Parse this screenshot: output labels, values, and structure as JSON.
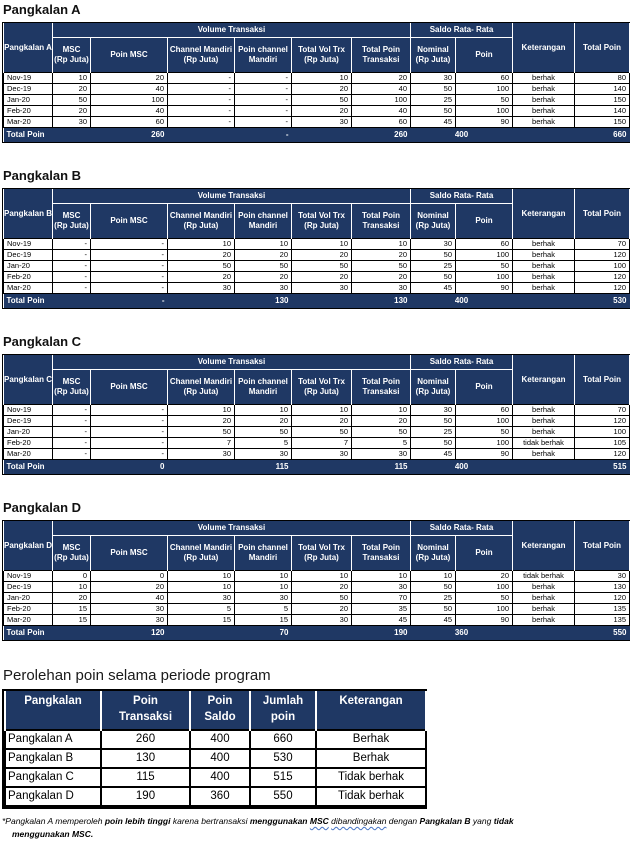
{
  "colors": {
    "header_navy": "#1F3864",
    "grid_black": "#000000",
    "squiggle_blue": "#4472C4",
    "header_text": "#FFFFFF"
  },
  "group_headers": {
    "volume": "Volume Transaksi",
    "saldo": "Saldo Rata- Rata"
  },
  "columns": {
    "msc": "MSC\n(Rp Juta)",
    "poin_msc": "Poin MSC",
    "channel": "Channel Mandiri\n(Rp Juta)",
    "poin_channel": "Poin channel\nMandiri",
    "total_vol": "Total Vol Trx\n(Rp Juta)",
    "total_poin_trx": "Total Poin\nTransaksi",
    "nominal": "Nominal\n(Rp Juta)",
    "poin": "Poin",
    "keterangan": "Keterangan",
    "total_poin": "Total Poin"
  },
  "total_label": "Total Poin",
  "tables": [
    {
      "title": "Pangkalan A",
      "name": "Pangkalan A",
      "rows": [
        [
          "Nov-19",
          "10",
          "20",
          "-",
          "-",
          "10",
          "20",
          "30",
          "60",
          "berhak",
          "80"
        ],
        [
          "Dec-19",
          "20",
          "40",
          "-",
          "-",
          "20",
          "40",
          "50",
          "100",
          "berhak",
          "140"
        ],
        [
          "Jan-20",
          "50",
          "100",
          "-",
          "-",
          "50",
          "100",
          "25",
          "50",
          "berhak",
          "150"
        ],
        [
          "Feb-20",
          "20",
          "40",
          "-",
          "-",
          "20",
          "40",
          "50",
          "100",
          "berhak",
          "140"
        ],
        [
          "Mar-20",
          "30",
          "60",
          "-",
          "-",
          "30",
          "60",
          "45",
          "90",
          "berhak",
          "150"
        ]
      ],
      "totals": {
        "poin_msc": "260",
        "poin_channel": "-",
        "poin_trx": "260",
        "saldo": "400",
        "total": "660"
      }
    },
    {
      "title": "Pangkalan B",
      "name": "Pangkalan B",
      "rows": [
        [
          "Nov-19",
          "-",
          "-",
          "10",
          "10",
          "10",
          "10",
          "30",
          "60",
          "berhak",
          "70"
        ],
        [
          "Dec-19",
          "-",
          "-",
          "20",
          "20",
          "20",
          "20",
          "50",
          "100",
          "berhak",
          "120"
        ],
        [
          "Jan-20",
          "-",
          "-",
          "50",
          "50",
          "50",
          "50",
          "25",
          "50",
          "berhak",
          "100"
        ],
        [
          "Feb-20",
          "-",
          "-",
          "20",
          "20",
          "20",
          "20",
          "50",
          "100",
          "berhak",
          "120"
        ],
        [
          "Mar-20",
          "-",
          "-",
          "30",
          "30",
          "30",
          "30",
          "45",
          "90",
          "berhak",
          "120"
        ]
      ],
      "totals": {
        "poin_msc": "-",
        "poin_channel": "130",
        "poin_trx": "130",
        "saldo": "400",
        "total": "530"
      }
    },
    {
      "title": "Pangkalan C",
      "name": "Pangkalan C",
      "rows": [
        [
          "Nov-19",
          "-",
          "-",
          "10",
          "10",
          "10",
          "10",
          "30",
          "60",
          "berhak",
          "70"
        ],
        [
          "Dec-19",
          "-",
          "-",
          "20",
          "20",
          "20",
          "20",
          "50",
          "100",
          "berhak",
          "120"
        ],
        [
          "Jan-20",
          "-",
          "-",
          "50",
          "50",
          "50",
          "50",
          "25",
          "50",
          "berhak",
          "100"
        ],
        [
          "Feb-20",
          "-",
          "-",
          "7",
          "5",
          "7",
          "5",
          "50",
          "100",
          "tidak berhak",
          "105"
        ],
        [
          "Mar-20",
          "-",
          "-",
          "30",
          "30",
          "30",
          "30",
          "45",
          "90",
          "berhak",
          "120"
        ]
      ],
      "totals": {
        "poin_msc": "0",
        "poin_channel": "115",
        "poin_trx": "115",
        "saldo": "400",
        "total": "515"
      }
    },
    {
      "title": "Pangkalan D",
      "name": "Pangkalan D",
      "rows": [
        [
          "Nov-19",
          "0",
          "0",
          "10",
          "10",
          "10",
          "10",
          "10",
          "20",
          "tidak berhak",
          "30"
        ],
        [
          "Dec-19",
          "10",
          "20",
          "10",
          "10",
          "20",
          "30",
          "50",
          "100",
          "berhak",
          "130"
        ],
        [
          "Jan-20",
          "20",
          "40",
          "30",
          "30",
          "50",
          "70",
          "25",
          "50",
          "berhak",
          "120"
        ],
        [
          "Feb-20",
          "15",
          "30",
          "5",
          "5",
          "20",
          "35",
          "50",
          "100",
          "berhak",
          "135"
        ],
        [
          "Mar-20",
          "15",
          "30",
          "15",
          "15",
          "30",
          "45",
          "45",
          "90",
          "berhak",
          "135"
        ]
      ],
      "totals": {
        "poin_msc": "120",
        "poin_channel": "70",
        "poin_trx": "190",
        "saldo": "360",
        "total": "550"
      }
    }
  ],
  "summary": {
    "title": "Perolehan poin selama periode program",
    "headers": [
      "Pangkalan",
      "Poin\nTransaksi",
      "Poin\nSaldo",
      "Jumlah\npoin",
      "Keterangan"
    ],
    "rows": [
      [
        "Pangkalan A",
        "260",
        "400",
        "660",
        "Berhak"
      ],
      [
        "Pangkalan B",
        "130",
        "400",
        "530",
        "Berhak"
      ],
      [
        "Pangkalan C",
        "115",
        "400",
        "515",
        "Tidak berhak"
      ],
      [
        "Pangkalan D",
        "190",
        "360",
        "550",
        "Tidak berhak"
      ]
    ]
  },
  "footnote": {
    "lines": [
      [
        {
          "text": "*Pangkalan A memperoleh "
        },
        {
          "text": "poin lebih tinggi",
          "bold": true
        },
        {
          "text": " karena bertransaksi "
        },
        {
          "text": "menggunakan ",
          "bold": true
        },
        {
          "text": "MSC",
          "bold": true,
          "wavy": true
        },
        {
          "text": " "
        },
        {
          "text": "dibandingakan",
          "wavy": true
        },
        {
          "text": " dengan "
        },
        {
          "text": "Pangkalan B",
          "bold": true
        },
        {
          "text": " yang "
        },
        {
          "text": "tidak",
          "bold": true
        }
      ],
      [
        {
          "text": "menggunakan MSC.",
          "bold": true
        }
      ]
    ]
  }
}
